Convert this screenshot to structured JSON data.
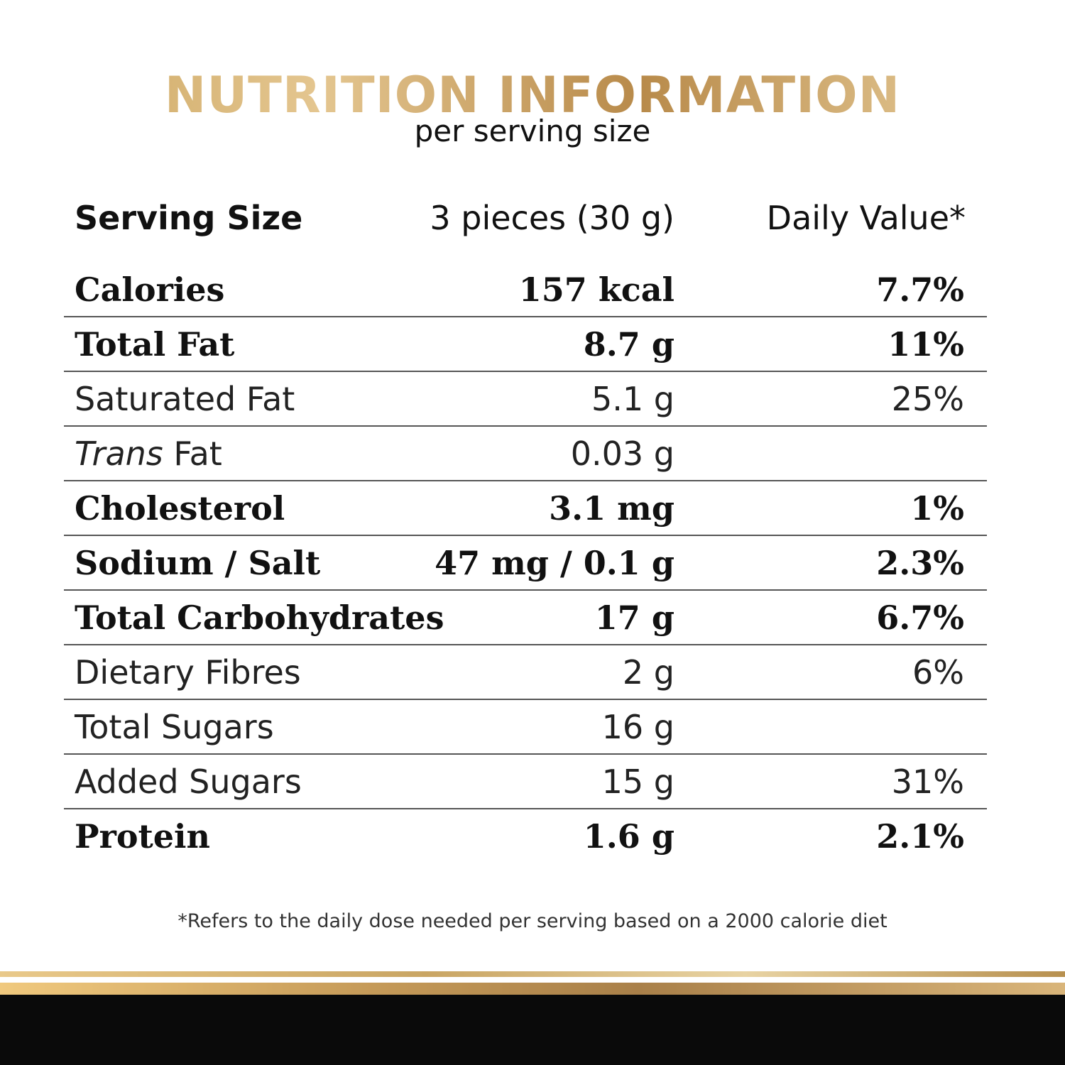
{
  "header": {
    "title": "NUTRITION INFORMATION",
    "subtitle": "per serving size"
  },
  "columns": {
    "label": "Serving Size",
    "amount": "3 pieces (30 g)",
    "daily_value": "Daily Value*"
  },
  "rows": [
    {
      "label": "Calories",
      "amount": "157 kcal",
      "dv": "7.7%",
      "bold": true
    },
    {
      "label": "Total Fat",
      "amount": "8.7 g",
      "dv": "11%",
      "bold": true
    },
    {
      "label": "Saturated Fat",
      "amount": "5.1 g",
      "dv": "25%",
      "bold": false
    },
    {
      "label_italic": "Trans",
      "label": " Fat",
      "amount": "0.03 g",
      "dv": "",
      "bold": false
    },
    {
      "label": "Cholesterol",
      "amount": "3.1 mg",
      "dv": "1%",
      "bold": true
    },
    {
      "label": "Sodium / Salt",
      "amount": "47 mg / 0.1 g",
      "dv": "2.3%",
      "bold": true
    },
    {
      "label": "Total Carbohydrates",
      "amount": "17 g",
      "dv": "6.7%",
      "bold": true
    },
    {
      "label": "Dietary Fibres",
      "amount": "2 g",
      "dv": "6%",
      "bold": false
    },
    {
      "label": "Total Sugars",
      "amount": "16 g",
      "dv": "",
      "bold": false
    },
    {
      "label": "Added Sugars",
      "amount": "15 g",
      "dv": "31%",
      "bold": false
    },
    {
      "label": "Protein",
      "amount": "1.6 g",
      "dv": "2.1%",
      "bold": true
    }
  ],
  "footnote": "*Refers to the daily dose needed per serving based on a 2000 calorie diet",
  "colors": {
    "gold_light": "#e4c690",
    "gold_dark": "#b88a4a",
    "black_band": "#0a0a0a"
  }
}
